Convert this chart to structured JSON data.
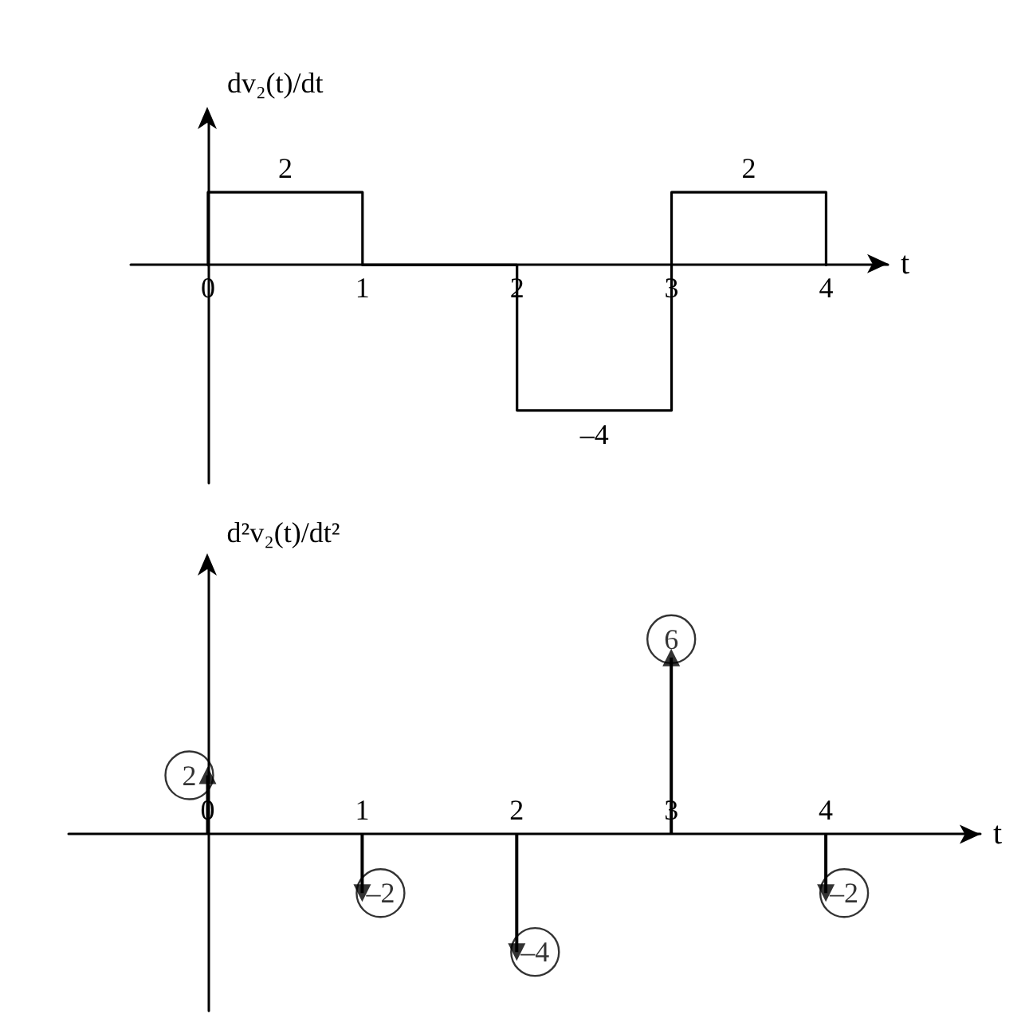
{
  "chart_data": [
    {
      "type": "line",
      "xlabel": "t",
      "ylabel": "dv₂(t)/dt",
      "x": [
        0,
        0,
        0.5,
        1,
        1,
        2,
        2,
        2.5,
        3,
        3,
        3.5,
        4,
        4
      ],
      "values": [
        0,
        2,
        2,
        2,
        0,
        0,
        -4,
        -4,
        -4,
        2,
        2,
        2,
        0
      ],
      "value_labels": [
        null,
        null,
        "2",
        null,
        null,
        null,
        null,
        "–4",
        null,
        null,
        "2",
        null,
        null
      ],
      "color": "#000000",
      "xlim": [
        -0.5,
        4.4
      ],
      "xticks": [
        0,
        1,
        2,
        3,
        4
      ],
      "tick_labels": "x",
      "marker": "none"
    },
    {
      "type": "lollipop",
      "xlabel": "t",
      "ylabel": "d²v₂(t)/dt²",
      "x": [
        0,
        1,
        2,
        3,
        4
      ],
      "values": [
        2,
        -2,
        -4,
        6,
        -2
      ],
      "value_labels": [
        "2",
        "–2",
        "–4",
        "6",
        "–2"
      ],
      "color": "#000000",
      "xlim": [
        -0.9,
        5
      ],
      "xticks": [
        0,
        1,
        2,
        3,
        4
      ],
      "tick_labels": "x",
      "marker": "triangle"
    }
  ]
}
